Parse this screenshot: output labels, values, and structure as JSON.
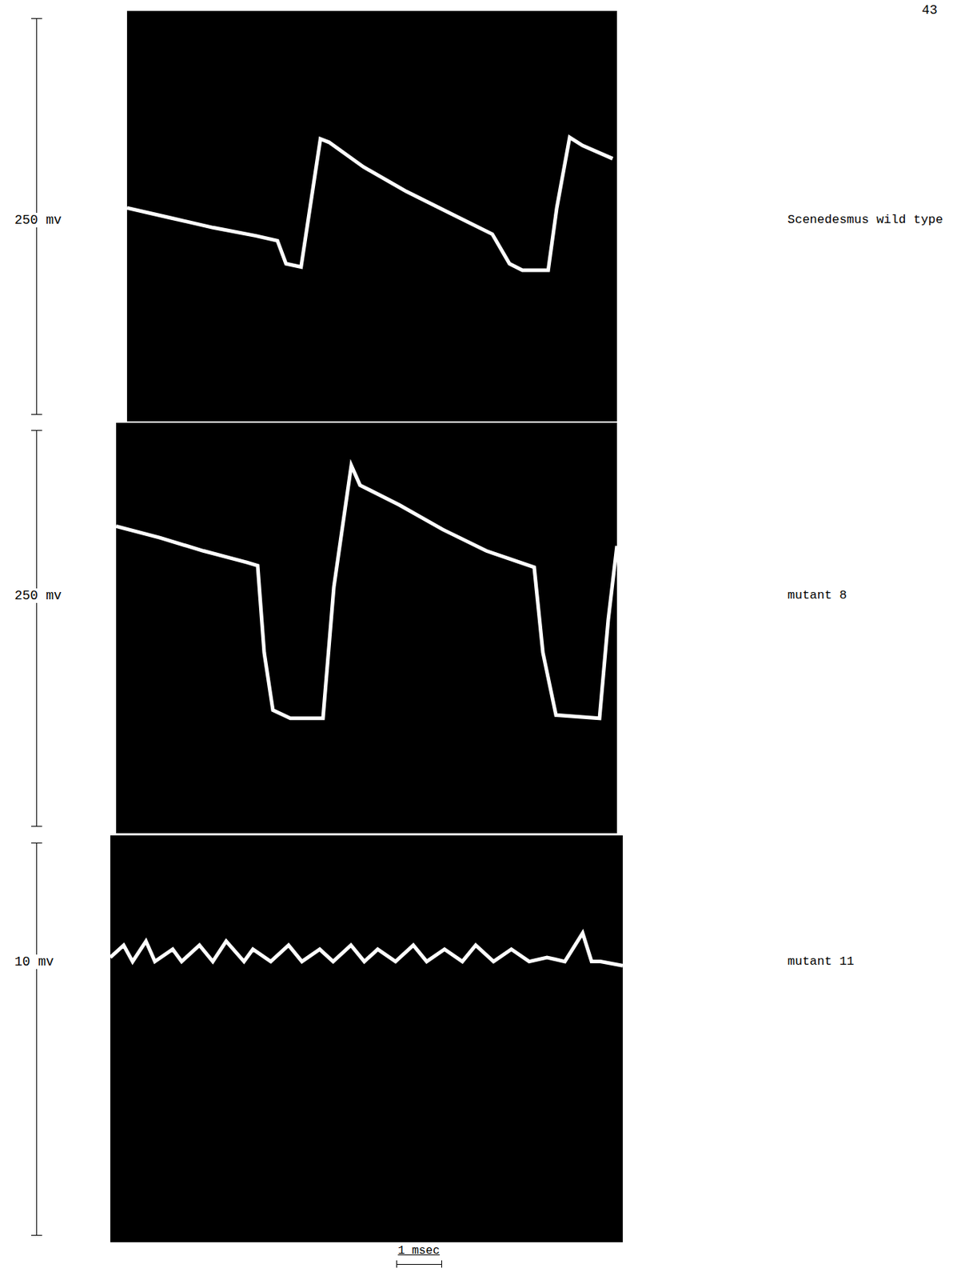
{
  "page_number": "43",
  "time_bar": {
    "label": "1 msec",
    "value": 1
  },
  "chart_data": [
    {
      "type": "line",
      "title": "Scenedesmus wild type",
      "scale_bar": {
        "label": "250 mv"
      },
      "color": "#ffffff",
      "tick_labels": false,
      "xlim": [
        0,
        11.4
      ],
      "ylim": [
        0,
        250
      ],
      "x": [
        0,
        1,
        2,
        3,
        3.5,
        3.7,
        4.05,
        4.2,
        4.5,
        4.7,
        5.5,
        6.5,
        7.5,
        8.5,
        8.9,
        9.2,
        9.8,
        10.0,
        10.3,
        10.6,
        11.3
      ],
      "values": [
        130,
        124,
        118,
        113,
        110,
        96,
        94,
        120,
        172,
        170,
        155,
        140,
        127,
        114,
        96,
        92,
        92,
        130,
        173,
        168,
        160
      ]
    },
    {
      "type": "line",
      "title": "mutant 8",
      "scale_bar": {
        "label": "250 mv"
      },
      "color": "#ffffff",
      "tick_labels": false,
      "xlim": [
        0,
        11.5
      ],
      "ylim": [
        0,
        250
      ],
      "x": [
        0,
        1,
        2,
        3,
        3.25,
        3.4,
        3.6,
        4,
        4.75,
        5.0,
        5.4,
        5.6,
        6.5,
        7.5,
        8.5,
        9.6,
        9.8,
        10.1,
        11.1,
        11.3,
        11.5
      ],
      "values": [
        187,
        180,
        172,
        165,
        163,
        110,
        75,
        70,
        70,
        150,
        224,
        212,
        200,
        185,
        172,
        162,
        110,
        72,
        70,
        130,
        175
      ]
    },
    {
      "type": "line",
      "title": "mutant 11",
      "scale_bar": {
        "label": "10 mv"
      },
      "color": "#ffffff",
      "tick_labels": false,
      "xlim": [
        0,
        11.5
      ],
      "ylim": [
        0,
        10
      ],
      "x": [
        0,
        0.3,
        0.5,
        0.8,
        1.0,
        1.4,
        1.6,
        2.0,
        2.3,
        2.6,
        3.0,
        3.2,
        3.6,
        4.0,
        4.3,
        4.7,
        5.0,
        5.4,
        5.7,
        6.0,
        6.4,
        6.8,
        7.1,
        7.5,
        7.9,
        8.2,
        8.6,
        9.0,
        9.4,
        9.8,
        10.2,
        10.6,
        10.8,
        11.0,
        11.5
      ],
      "values": [
        7.0,
        7.3,
        6.9,
        7.4,
        6.9,
        7.2,
        6.9,
        7.3,
        6.9,
        7.4,
        6.9,
        7.2,
        6.9,
        7.3,
        6.9,
        7.2,
        6.9,
        7.3,
        6.9,
        7.2,
        6.9,
        7.3,
        6.9,
        7.2,
        6.9,
        7.3,
        6.9,
        7.2,
        6.9,
        7.0,
        6.9,
        7.6,
        6.9,
        6.9,
        6.8
      ]
    }
  ]
}
